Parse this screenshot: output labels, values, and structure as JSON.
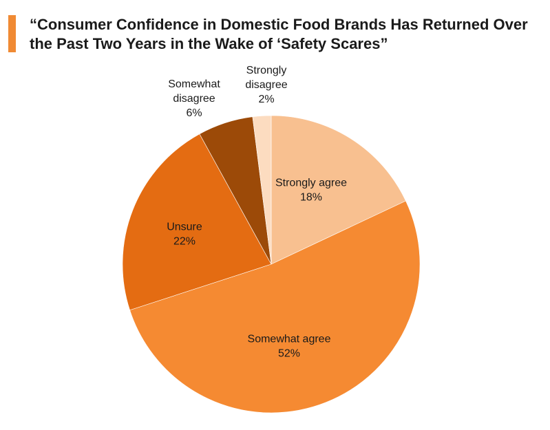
{
  "title": "“Consumer Confidence in Domestic Food Brands Has Returned Over the Past Two Years in the Wake of ‘Safety Scares”",
  "colors": {
    "title_bar": "#f08a34"
  },
  "chart_data": {
    "type": "pie",
    "title": "“Consumer Confidence in Domestic Food Brands Has Returned Over the Past Two Years in the Wake of ‘Safety Scares”",
    "slices": [
      {
        "label": "Strongly agree",
        "label_lines": [
          "Strongly agree"
        ],
        "value": 18,
        "value_text": "18%",
        "color": "#f8c090"
      },
      {
        "label": "Somewhat agree",
        "label_lines": [
          "Somewhat agree"
        ],
        "value": 52,
        "value_text": "52%",
        "color": "#f58a32"
      },
      {
        "label": "Unsure",
        "label_lines": [
          "Unsure"
        ],
        "value": 22,
        "value_text": "22%",
        "color": "#e46c12"
      },
      {
        "label": "Somewhat disagree",
        "label_lines": [
          "Somewhat",
          "disagree"
        ],
        "value": 6,
        "value_text": "6%",
        "color": "#9c4a08"
      },
      {
        "label": "Strongly disagree",
        "label_lines": [
          "Strongly",
          "disagree"
        ],
        "value": 2,
        "value_text": "2%",
        "color": "#fcdcc0"
      }
    ],
    "start": "12 o'clock",
    "direction": "clockwise",
    "legend": "none",
    "label_placement": "inside for large slices, outside above for small slices"
  }
}
